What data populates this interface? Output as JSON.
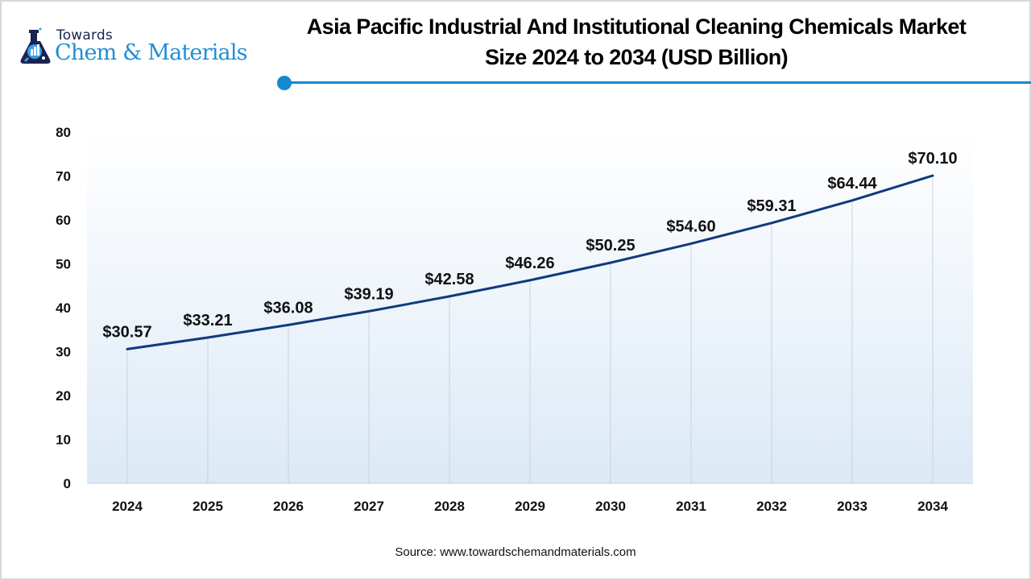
{
  "header": {
    "logo": {
      "top_text": "Towards",
      "main_text": "Chem & Materials",
      "icon": "flask-chart-icon"
    },
    "title_line1": "Asia Pacific Industrial And Institutional Cleaning Chemicals Market",
    "title_line2": "Size 2024 to 2034 (USD Billion)"
  },
  "colors": {
    "accent": "#1589d0",
    "line": "#0f3a7d",
    "logo_dark": "#1c2250",
    "logo_blue": "#1f8fd3",
    "plot_bg_top": "#ffffff",
    "plot_bg_bottom": "#dce9f6",
    "gridline": "#c8d3de"
  },
  "chart_data": {
    "type": "line",
    "title": "Asia Pacific Industrial And Institutional Cleaning Chemicals Market Size 2024 to 2034 (USD Billion)",
    "xlabel": "",
    "ylabel": "",
    "categories": [
      "2024",
      "2025",
      "2026",
      "2027",
      "2028",
      "2029",
      "2030",
      "2031",
      "2032",
      "2033",
      "2034"
    ],
    "series": [
      {
        "name": "Market Size (USD Billion)",
        "values": [
          30.57,
          33.21,
          36.08,
          39.19,
          42.58,
          46.26,
          50.25,
          54.6,
          59.31,
          64.44,
          70.1
        ]
      }
    ],
    "data_labels": [
      "$30.57",
      "$33.21",
      "$36.08",
      "$39.19",
      "$42.58",
      "$46.26",
      "$50.25",
      "$54.60",
      "$59.31",
      "$64.44",
      "$70.10"
    ],
    "y_ticks": [
      0,
      10,
      20,
      30,
      40,
      50,
      60,
      70,
      80
    ],
    "ylim": [
      0,
      80
    ],
    "grid": "vertical drop lines at each category",
    "legend": "none"
  },
  "footer": {
    "source": "Source: www.towardschemandmaterials.com"
  }
}
